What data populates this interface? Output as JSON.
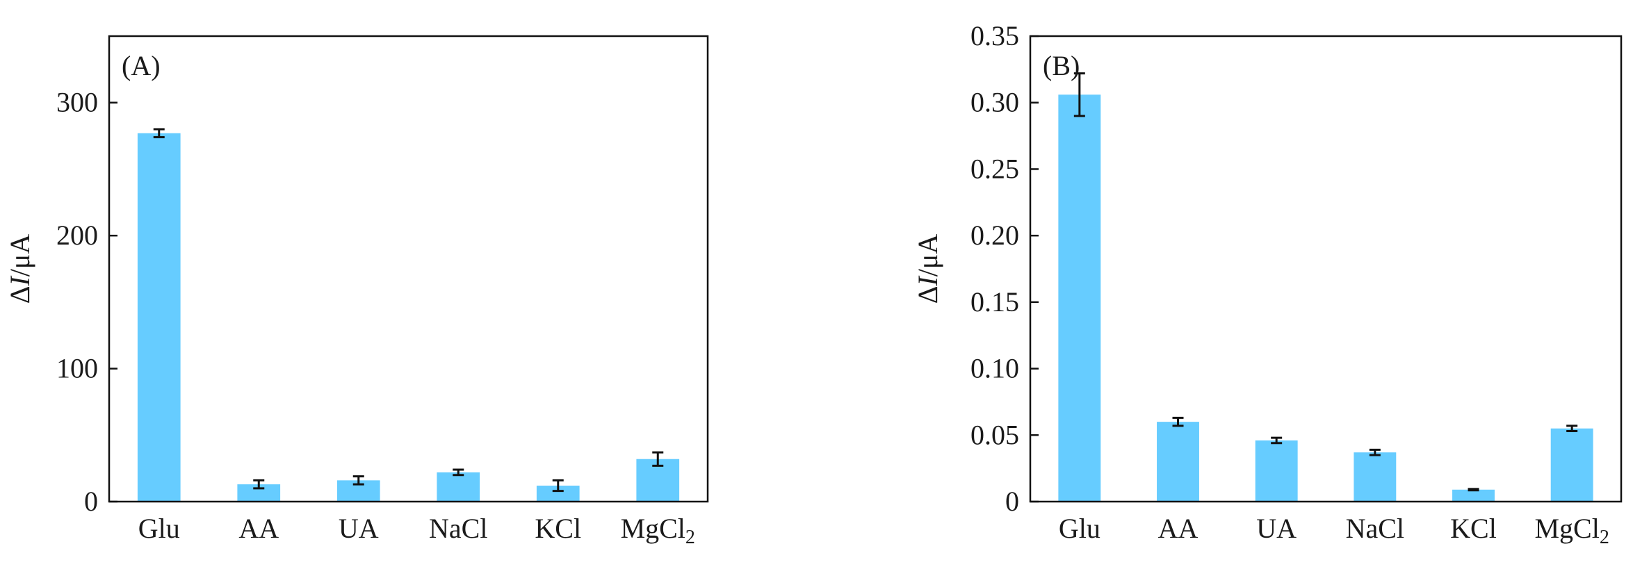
{
  "chart_data": [
    {
      "type": "bar",
      "panel_label": "(A)",
      "ylabel_delta": "Δ",
      "ylabel_var": "I",
      "ylabel_unit": "/μA",
      "ylim": [
        0,
        350
      ],
      "yticks": [
        0,
        100,
        200,
        300
      ],
      "ytick_labels": [
        "0",
        "100",
        "200",
        "300"
      ],
      "categories": [
        "Glu",
        "AA",
        "UA",
        "NaCl",
        "KCl",
        "MgCl2"
      ],
      "values": [
        277,
        13,
        16,
        22,
        12,
        32
      ],
      "errors": [
        3,
        3,
        3,
        2,
        4,
        5
      ],
      "bar_color": "#66ccff",
      "grid": false
    },
    {
      "type": "bar",
      "panel_label": "(B)",
      "ylabel_delta": "Δ",
      "ylabel_var": "I",
      "ylabel_unit": "/μA",
      "ylim": [
        0,
        0.35
      ],
      "yticks": [
        0,
        0.05,
        0.1,
        0.15,
        0.2,
        0.25,
        0.3,
        0.35
      ],
      "ytick_labels": [
        "0",
        "0.05",
        "0.10",
        "0.15",
        "0.20",
        "0.25",
        "0.30",
        "0.35"
      ],
      "categories": [
        "Glu",
        "AA",
        "UA",
        "NaCl",
        "KCl",
        "MgCl2"
      ],
      "values": [
        0.306,
        0.06,
        0.046,
        0.037,
        0.009,
        0.055
      ],
      "errors": [
        0.016,
        0.003,
        0.002,
        0.002,
        0.0005,
        0.002
      ],
      "bar_color": "#66ccff",
      "grid": false
    }
  ]
}
